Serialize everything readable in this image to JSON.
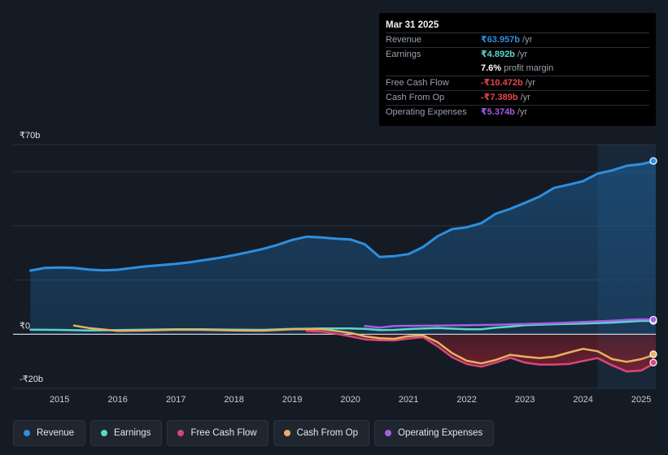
{
  "tooltip": {
    "date": "Mar 31 2025",
    "rows": [
      {
        "label": "Revenue",
        "value": "₹63.957b",
        "unit": "/yr",
        "color": "#2d8fe0"
      },
      {
        "label": "Earnings",
        "value": "₹4.892b",
        "unit": "/yr",
        "color": "#5ad8c9"
      },
      {
        "label": "",
        "value": "7.6%",
        "unit": "profit margin",
        "color": "#ffffff"
      },
      {
        "label": "Free Cash Flow",
        "value": "-₹10.472b",
        "unit": "/yr",
        "color": "#e8444a"
      },
      {
        "label": "Cash From Op",
        "value": "-₹7.389b",
        "unit": "/yr",
        "color": "#e8444a"
      },
      {
        "label": "Operating Expenses",
        "value": "₹5.374b",
        "unit": "/yr",
        "color": "#a35ee8"
      }
    ]
  },
  "legend": [
    {
      "label": "Revenue",
      "color": "#2d8fe0"
    },
    {
      "label": "Earnings",
      "color": "#5ad8c9"
    },
    {
      "label": "Free Cash Flow",
      "color": "#d9457a"
    },
    {
      "label": "Cash From Op",
      "color": "#e8b15f"
    },
    {
      "label": "Operating Expenses",
      "color": "#a35ee8"
    }
  ],
  "chart_data": {
    "type": "line",
    "title": "",
    "xlabel": "",
    "ylabel": "",
    "ylim": [
      -20,
      70
    ],
    "y_tick_labels": [
      {
        "value": 70,
        "label": "₹70b"
      },
      {
        "value": 0,
        "label": "₹0"
      },
      {
        "value": -20,
        "label": "-₹20b"
      }
    ],
    "x_ticks": [
      2015,
      2016,
      2017,
      2018,
      2019,
      2020,
      2021,
      2022,
      2023,
      2024,
      2025
    ],
    "highlight_start": 2024.25,
    "series": [
      {
        "name": "Revenue",
        "color": "#2d8fe0",
        "fill": true,
        "points": [
          [
            2014.5,
            23.5
          ],
          [
            2014.75,
            24.5
          ],
          [
            2015.0,
            24.6
          ],
          [
            2015.25,
            24.5
          ],
          [
            2015.5,
            23.9
          ],
          [
            2015.75,
            23.6
          ],
          [
            2016.0,
            23.8
          ],
          [
            2016.25,
            24.5
          ],
          [
            2016.5,
            25.1
          ],
          [
            2016.75,
            25.5
          ],
          [
            2017.0,
            26.0
          ],
          [
            2017.25,
            26.6
          ],
          [
            2017.5,
            27.4
          ],
          [
            2017.75,
            28.2
          ],
          [
            2018.0,
            29.2
          ],
          [
            2018.25,
            30.3
          ],
          [
            2018.5,
            31.5
          ],
          [
            2018.75,
            33.0
          ],
          [
            2019.0,
            34.8
          ],
          [
            2019.25,
            36.0
          ],
          [
            2019.5,
            35.7
          ],
          [
            2019.75,
            35.3
          ],
          [
            2020.0,
            35.0
          ],
          [
            2020.25,
            33.2
          ],
          [
            2020.5,
            28.5
          ],
          [
            2020.75,
            28.8
          ],
          [
            2021.0,
            29.6
          ],
          [
            2021.25,
            32.2
          ],
          [
            2021.5,
            36.2
          ],
          [
            2021.75,
            38.8
          ],
          [
            2022.0,
            39.5
          ],
          [
            2022.25,
            41.0
          ],
          [
            2022.5,
            44.5
          ],
          [
            2022.75,
            46.3
          ],
          [
            2023.0,
            48.5
          ],
          [
            2023.25,
            50.8
          ],
          [
            2023.5,
            54.0
          ],
          [
            2023.75,
            55.2
          ],
          [
            2024.0,
            56.5
          ],
          [
            2024.25,
            59.3
          ],
          [
            2024.5,
            60.5
          ],
          [
            2024.75,
            62.2
          ],
          [
            2025.0,
            62.8
          ],
          [
            2025.25,
            63.957
          ]
        ]
      },
      {
        "name": "Earnings",
        "color": "#5ad8c9",
        "fill": false,
        "points": [
          [
            2014.5,
            1.7
          ],
          [
            2015.0,
            1.6
          ],
          [
            2015.5,
            1.4
          ],
          [
            2016.0,
            1.5
          ],
          [
            2016.5,
            1.7
          ],
          [
            2017.0,
            1.8
          ],
          [
            2017.5,
            1.8
          ],
          [
            2018.0,
            1.7
          ],
          [
            2018.5,
            1.6
          ],
          [
            2019.0,
            2.0
          ],
          [
            2019.5,
            2.1
          ],
          [
            2020.0,
            2.1
          ],
          [
            2020.25,
            2.0
          ],
          [
            2020.5,
            1.5
          ],
          [
            2020.75,
            1.6
          ],
          [
            2021.0,
            1.9
          ],
          [
            2021.5,
            2.3
          ],
          [
            2022.0,
            1.8
          ],
          [
            2022.25,
            1.8
          ],
          [
            2022.5,
            2.4
          ],
          [
            2022.75,
            2.8
          ],
          [
            2023.0,
            3.3
          ],
          [
            2023.5,
            3.7
          ],
          [
            2024.0,
            3.9
          ],
          [
            2024.5,
            4.3
          ],
          [
            2024.75,
            4.6
          ],
          [
            2025.0,
            4.9
          ],
          [
            2025.25,
            4.892
          ]
        ]
      },
      {
        "name": "Free Cash Flow",
        "color": "#d9457a",
        "fill": true,
        "points": [
          [
            2019.25,
            1.2
          ],
          [
            2019.5,
            1.0
          ],
          [
            2019.75,
            0.2
          ],
          [
            2020.0,
            -0.8
          ],
          [
            2020.25,
            -1.9
          ],
          [
            2020.5,
            -2.2
          ],
          [
            2020.75,
            -2.3
          ],
          [
            2021.0,
            -1.6
          ],
          [
            2021.25,
            -1.1
          ],
          [
            2021.5,
            -4.5
          ],
          [
            2021.75,
            -8.5
          ],
          [
            2022.0,
            -11.0
          ],
          [
            2022.25,
            -12.0
          ],
          [
            2022.5,
            -10.5
          ],
          [
            2022.75,
            -8.7
          ],
          [
            2023.0,
            -10.5
          ],
          [
            2023.25,
            -11.2
          ],
          [
            2023.5,
            -11.2
          ],
          [
            2023.75,
            -11.0
          ],
          [
            2024.0,
            -9.9
          ],
          [
            2024.25,
            -8.8
          ],
          [
            2024.5,
            -11.5
          ],
          [
            2024.75,
            -13.8
          ],
          [
            2025.0,
            -13.4
          ],
          [
            2025.25,
            -10.472
          ]
        ]
      },
      {
        "name": "Cash From Op",
        "color": "#e8b15f",
        "fill": false,
        "points": [
          [
            2015.25,
            3.2
          ],
          [
            2015.5,
            2.3
          ],
          [
            2016.0,
            1.2
          ],
          [
            2016.5,
            1.4
          ],
          [
            2017.0,
            1.7
          ],
          [
            2017.5,
            1.6
          ],
          [
            2018.0,
            1.4
          ],
          [
            2018.5,
            1.3
          ],
          [
            2019.0,
            1.8
          ],
          [
            2019.5,
            1.9
          ],
          [
            2020.0,
            0.5
          ],
          [
            2020.25,
            -0.8
          ],
          [
            2020.5,
            -1.5
          ],
          [
            2020.75,
            -1.7
          ],
          [
            2021.0,
            -0.7
          ],
          [
            2021.25,
            -0.4
          ],
          [
            2021.5,
            -3.0
          ],
          [
            2021.75,
            -7.0
          ],
          [
            2022.0,
            -9.8
          ],
          [
            2022.25,
            -10.8
          ],
          [
            2022.5,
            -9.5
          ],
          [
            2022.75,
            -7.6
          ],
          [
            2023.0,
            -8.3
          ],
          [
            2023.25,
            -8.8
          ],
          [
            2023.5,
            -8.3
          ],
          [
            2023.75,
            -6.8
          ],
          [
            2024.0,
            -5.4
          ],
          [
            2024.25,
            -6.3
          ],
          [
            2024.5,
            -9.2
          ],
          [
            2024.75,
            -10.2
          ],
          [
            2025.0,
            -9.2
          ],
          [
            2025.25,
            -7.389
          ]
        ]
      },
      {
        "name": "Operating Expenses",
        "color": "#a35ee8",
        "fill": false,
        "points": [
          [
            2020.25,
            3.0
          ],
          [
            2020.5,
            2.4
          ],
          [
            2020.75,
            3.0
          ],
          [
            2021.0,
            3.1
          ],
          [
            2021.5,
            3.2
          ],
          [
            2022.0,
            3.3
          ],
          [
            2022.5,
            3.5
          ],
          [
            2023.0,
            3.8
          ],
          [
            2023.5,
            4.1
          ],
          [
            2024.0,
            4.5
          ],
          [
            2024.5,
            5.0
          ],
          [
            2024.75,
            5.3
          ],
          [
            2025.0,
            5.5
          ],
          [
            2025.25,
            5.374
          ]
        ]
      }
    ]
  }
}
